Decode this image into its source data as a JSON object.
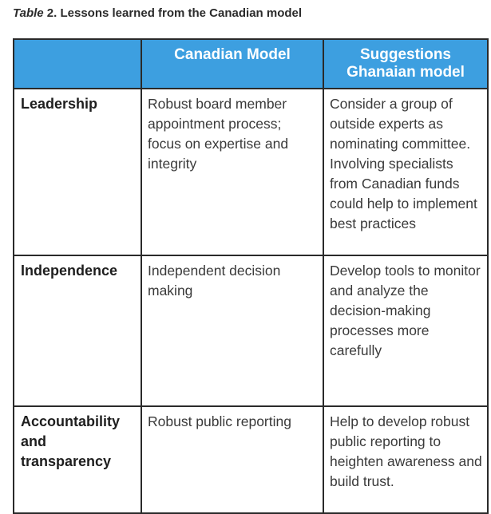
{
  "caption": {
    "label_italic": "Table",
    "label_rest": " 2. Lessons learned from the Canadian model"
  },
  "table": {
    "headers": [
      "",
      "Canadian Model",
      "Suggestions\nGhanaian model"
    ],
    "rows": [
      {
        "label": "Leadership",
        "canadian": "Robust board member appointment process; focus on expertise and integrity",
        "ghanaian": "Consider a group of outside experts as nominating committee. Involving specialists from Canadian funds could help to implement best practices"
      },
      {
        "label": "Independence",
        "canadian": "Independent decision making",
        "ghanaian": "Develop tools to monitor and analyze the decision-making processes more carefully"
      },
      {
        "label": "Accountability\nand\ntransparency",
        "canadian": "Robust public reporting",
        "ghanaian": "Help to develop robust public reporting to heighten awareness and build trust."
      }
    ]
  },
  "colors": {
    "header_bg": "#3d9fe0",
    "header_text": "#ffffff",
    "border": "#2a2a2a"
  }
}
